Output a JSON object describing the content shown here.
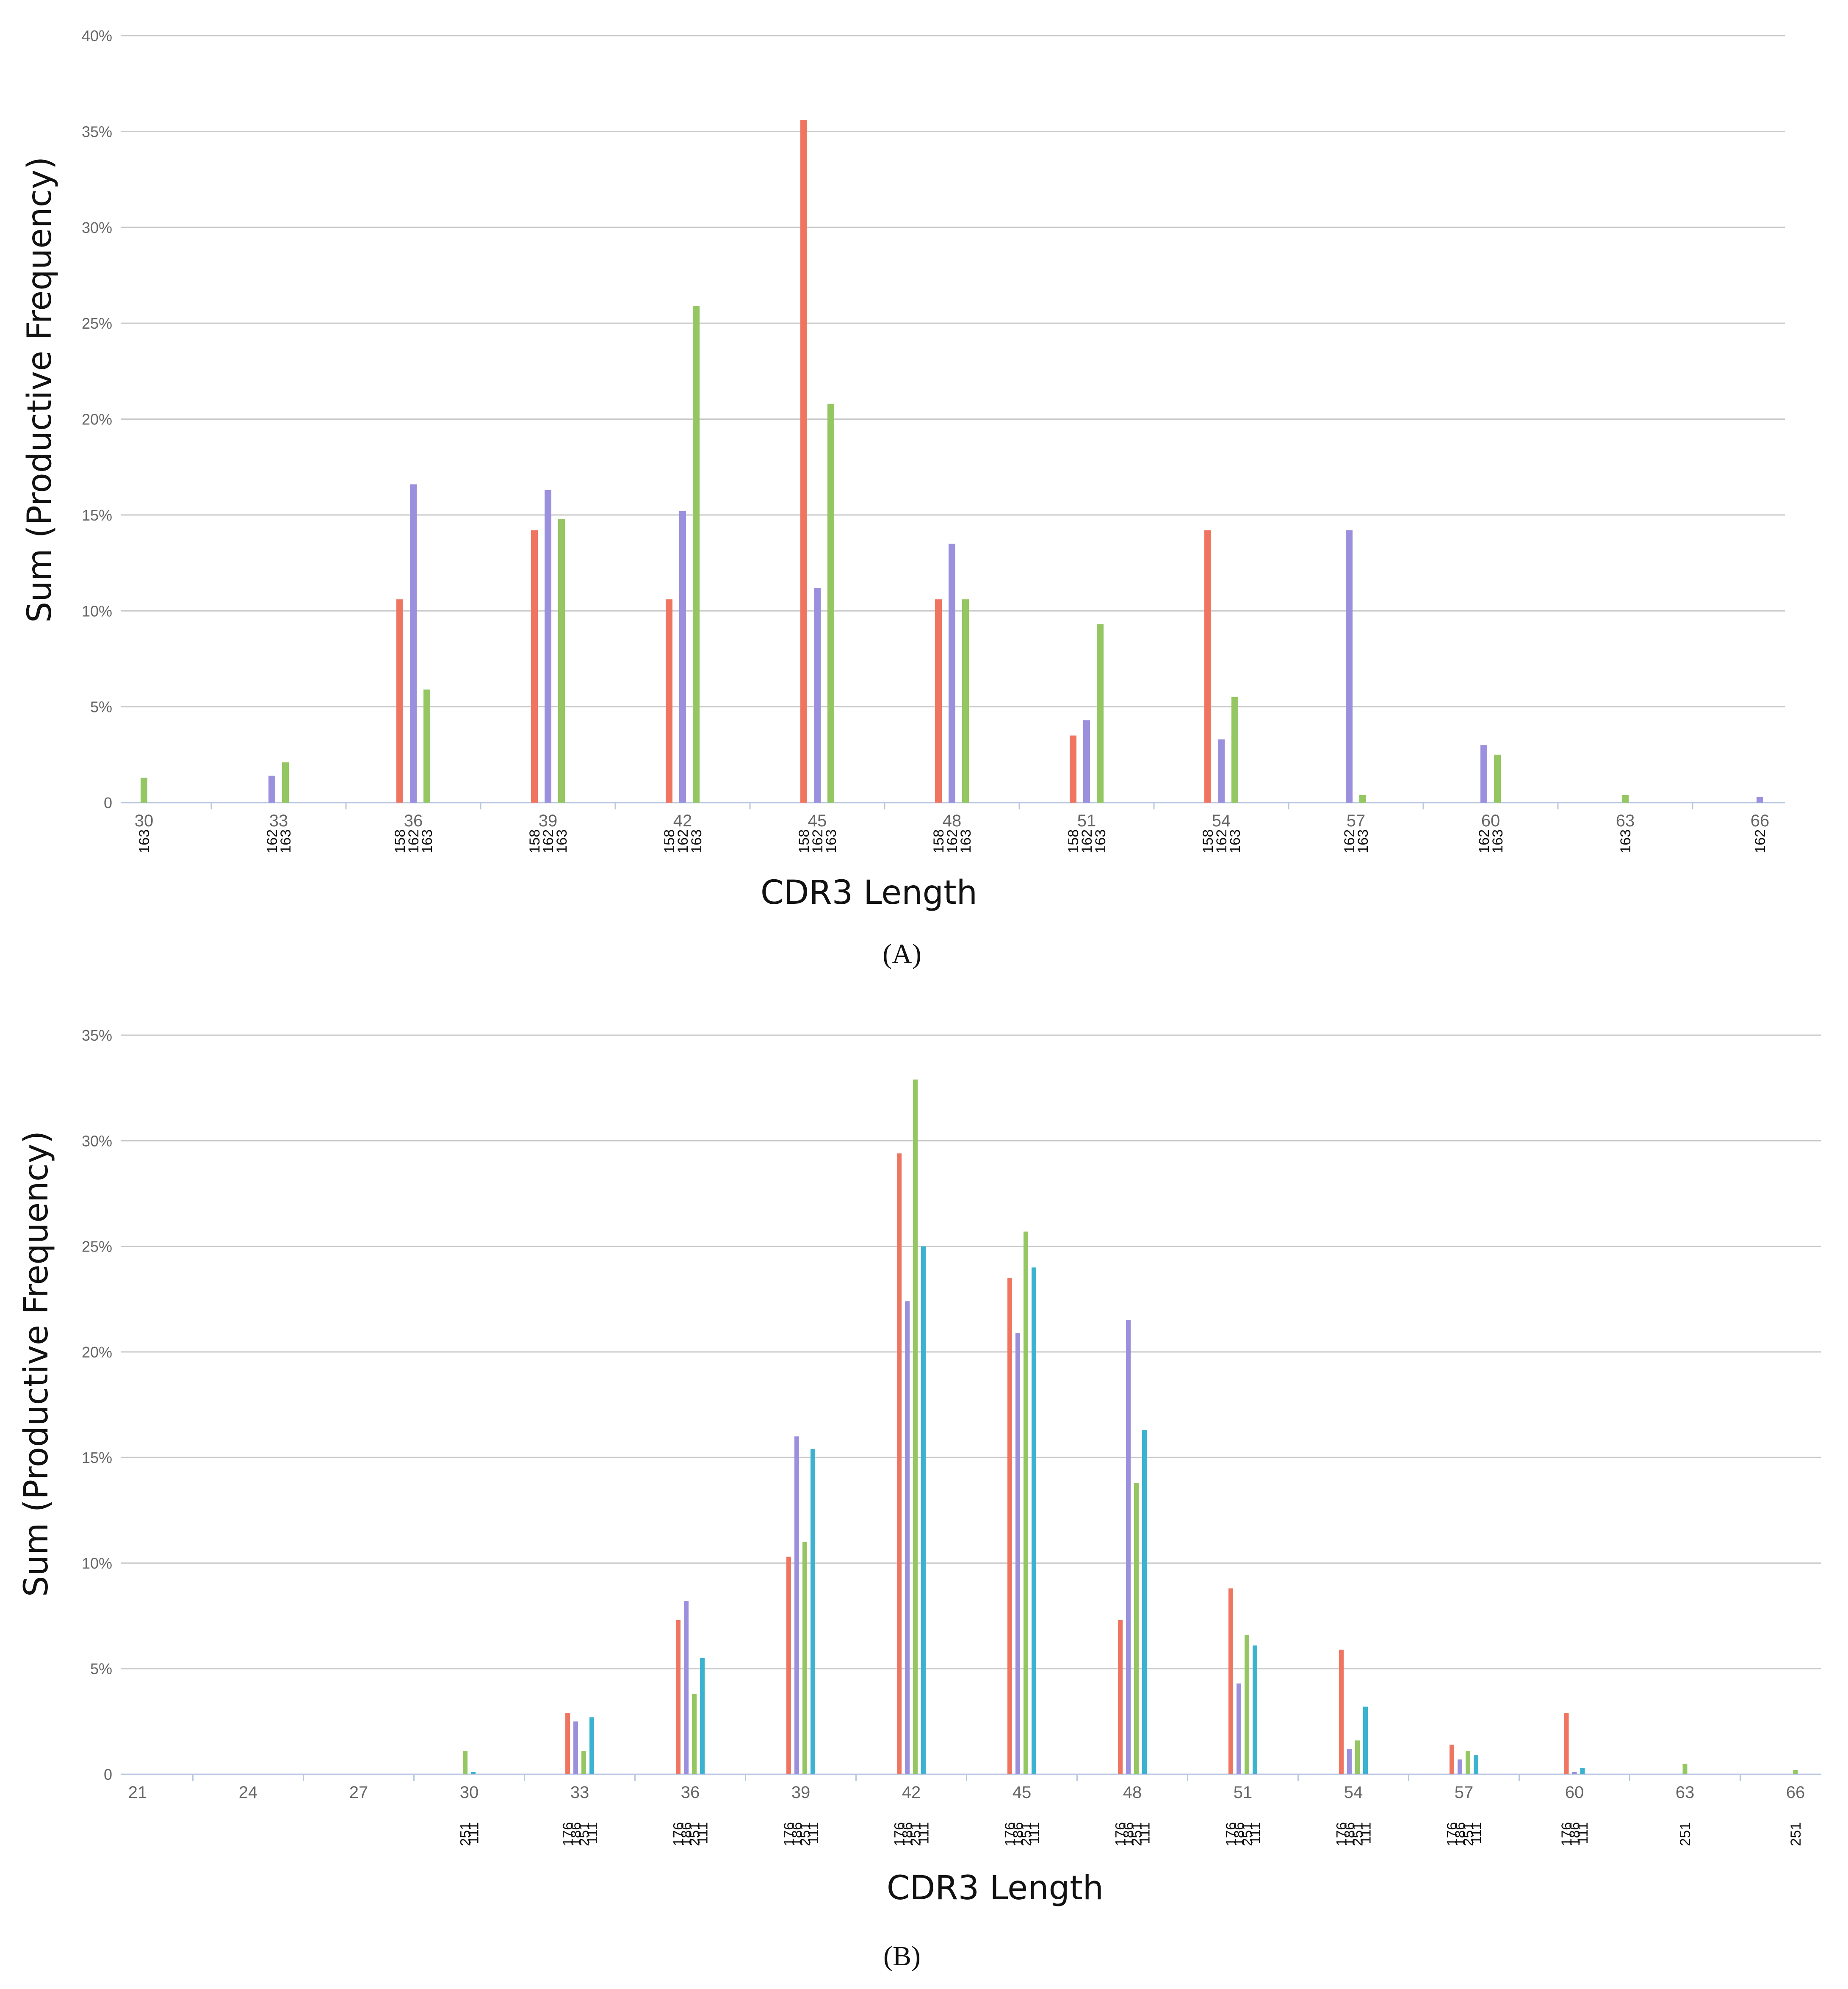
{
  "colors": {
    "158": "#f07560",
    "162": "#9b90dd",
    "163": "#94c661",
    "176": "#f07560",
    "186": "#9b90dd",
    "251": "#94c661",
    "111": "#3bb3d0"
  },
  "chart_data": [
    {
      "panel_label": "(A)",
      "type": "bar",
      "xlabel": "CDR3 Length",
      "ylabel": "Sum (Productive Frequency)",
      "ylim": [
        0,
        40
      ],
      "y_ticks": [
        "0",
        "5%",
        "10%",
        "15%",
        "20%",
        "25%",
        "30%",
        "35%",
        "40%"
      ],
      "grid": true,
      "groups": [
        {
          "x": "30",
          "bars": [
            {
              "s": "163",
              "v": 1.3
            }
          ]
        },
        {
          "x": "33",
          "bars": [
            {
              "s": "162",
              "v": 1.4
            },
            {
              "s": "163",
              "v": 2.1
            }
          ]
        },
        {
          "x": "36",
          "bars": [
            {
              "s": "158",
              "v": 10.6
            },
            {
              "s": "162",
              "v": 16.6
            },
            {
              "s": "163",
              "v": 5.9
            }
          ]
        },
        {
          "x": "39",
          "bars": [
            {
              "s": "158",
              "v": 14.2
            },
            {
              "s": "162",
              "v": 16.3
            },
            {
              "s": "163",
              "v": 14.8
            }
          ]
        },
        {
          "x": "42",
          "bars": [
            {
              "s": "158",
              "v": 10.6
            },
            {
              "s": "162",
              "v": 15.2
            },
            {
              "s": "163",
              "v": 25.9
            }
          ]
        },
        {
          "x": "45",
          "bars": [
            {
              "s": "158",
              "v": 35.6
            },
            {
              "s": "162",
              "v": 11.2
            },
            {
              "s": "163",
              "v": 20.8
            }
          ]
        },
        {
          "x": "48",
          "bars": [
            {
              "s": "158",
              "v": 10.6
            },
            {
              "s": "162",
              "v": 13.5
            },
            {
              "s": "163",
              "v": 10.6
            }
          ]
        },
        {
          "x": "51",
          "bars": [
            {
              "s": "158",
              "v": 3.5
            },
            {
              "s": "162",
              "v": 4.3
            },
            {
              "s": "163",
              "v": 9.3
            }
          ]
        },
        {
          "x": "54",
          "bars": [
            {
              "s": "158",
              "v": 14.2
            },
            {
              "s": "162",
              "v": 3.3
            },
            {
              "s": "163",
              "v": 5.5
            }
          ]
        },
        {
          "x": "57",
          "bars": [
            {
              "s": "162",
              "v": 14.2
            },
            {
              "s": "163",
              "v": 0.4
            }
          ]
        },
        {
          "x": "60",
          "bars": [
            {
              "s": "162",
              "v": 3.0
            },
            {
              "s": "163",
              "v": 2.5
            }
          ]
        },
        {
          "x": "63",
          "bars": [
            {
              "s": "163",
              "v": 0.4
            }
          ]
        },
        {
          "x": "66",
          "bars": [
            {
              "s": "162",
              "v": 0.3
            }
          ]
        }
      ]
    },
    {
      "panel_label": "(B)",
      "type": "bar",
      "xlabel": "CDR3 Length",
      "ylabel": "Sum (Productive Frequency)",
      "ylim": [
        0,
        35
      ],
      "y_ticks": [
        "0",
        "5%",
        "10%",
        "15%",
        "20%",
        "25%",
        "30%",
        "35%"
      ],
      "grid": true,
      "groups": [
        {
          "x": "21",
          "bars": []
        },
        {
          "x": "24",
          "bars": []
        },
        {
          "x": "27",
          "bars": []
        },
        {
          "x": "30",
          "bars": [
            {
              "s": "251",
              "v": 1.1
            },
            {
              "s": "111",
              "v": 0.1
            }
          ]
        },
        {
          "x": "33",
          "bars": [
            {
              "s": "176",
              "v": 2.9
            },
            {
              "s": "186",
              "v": 2.5
            },
            {
              "s": "251",
              "v": 1.1
            },
            {
              "s": "111",
              "v": 2.7
            }
          ]
        },
        {
          "x": "36",
          "bars": [
            {
              "s": "176",
              "v": 7.3
            },
            {
              "s": "186",
              "v": 8.2
            },
            {
              "s": "251",
              "v": 3.8
            },
            {
              "s": "111",
              "v": 5.5
            }
          ]
        },
        {
          "x": "39",
          "bars": [
            {
              "s": "176",
              "v": 10.3
            },
            {
              "s": "186",
              "v": 16.0
            },
            {
              "s": "251",
              "v": 11.0
            },
            {
              "s": "111",
              "v": 15.4
            }
          ]
        },
        {
          "x": "42",
          "bars": [
            {
              "s": "176",
              "v": 29.4
            },
            {
              "s": "186",
              "v": 22.4
            },
            {
              "s": "251",
              "v": 32.9
            },
            {
              "s": "111",
              "v": 25.0
            }
          ]
        },
        {
          "x": "45",
          "bars": [
            {
              "s": "176",
              "v": 23.5
            },
            {
              "s": "186",
              "v": 20.9
            },
            {
              "s": "251",
              "v": 25.7
            },
            {
              "s": "111",
              "v": 24.0
            }
          ]
        },
        {
          "x": "48",
          "bars": [
            {
              "s": "176",
              "v": 7.3
            },
            {
              "s": "186",
              "v": 21.5
            },
            {
              "s": "251",
              "v": 13.8
            },
            {
              "s": "111",
              "v": 16.3
            }
          ]
        },
        {
          "x": "51",
          "bars": [
            {
              "s": "176",
              "v": 8.8
            },
            {
              "s": "186",
              "v": 4.3
            },
            {
              "s": "251",
              "v": 6.6
            },
            {
              "s": "111",
              "v": 6.1
            }
          ]
        },
        {
          "x": "54",
          "bars": [
            {
              "s": "176",
              "v": 5.9
            },
            {
              "s": "186",
              "v": 1.2
            },
            {
              "s": "251",
              "v": 1.6
            },
            {
              "s": "111",
              "v": 3.2
            }
          ]
        },
        {
          "x": "57",
          "bars": [
            {
              "s": "176",
              "v": 1.4
            },
            {
              "s": "186",
              "v": 0.7
            },
            {
              "s": "251",
              "v": 1.1
            },
            {
              "s": "111",
              "v": 0.9
            }
          ]
        },
        {
          "x": "60",
          "bars": [
            {
              "s": "176",
              "v": 2.9
            },
            {
              "s": "186",
              "v": 0.1
            },
            {
              "s": "111",
              "v": 0.3
            }
          ]
        },
        {
          "x": "63",
          "bars": [
            {
              "s": "251",
              "v": 0.5
            }
          ]
        },
        {
          "x": "66",
          "bars": [
            {
              "s": "251",
              "v": 0.2
            }
          ]
        }
      ]
    }
  ]
}
